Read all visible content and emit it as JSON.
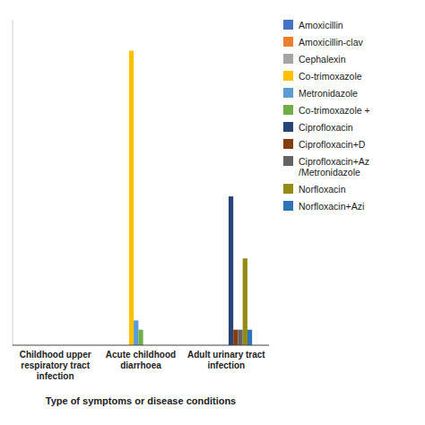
{
  "chart_data": {
    "type": "bar",
    "xlabel": "Type of symptoms or disease conditions",
    "categories": [
      "Childhood upper\nrespiratory tract\ninfection",
      "Acute childhood\ndiarrhoea",
      "Adult urinary tract\ninfection"
    ],
    "series": [
      {
        "name": "Amoxicillin",
        "color": "#4472C4",
        "values": [
          0,
          0,
          0
        ]
      },
      {
        "name": "Amoxicillin-clav",
        "color": "#ED7D31",
        "values": [
          0,
          0,
          0
        ]
      },
      {
        "name": "Cephalexin",
        "color": "#A5A5A5",
        "values": [
          0,
          0,
          0
        ]
      },
      {
        "name": "Co-trimoxazole",
        "color": "#FFC000",
        "values": [
          0,
          95,
          0
        ]
      },
      {
        "name": "Metronidazole",
        "color": "#5B9BD5",
        "values": [
          0,
          8,
          0
        ]
      },
      {
        "name": "Co-trimoxazole +",
        "color": "#70AD47",
        "values": [
          0,
          5,
          0
        ]
      },
      {
        "name": "Ciprofloxacin",
        "color": "#264478",
        "values": [
          0,
          0,
          48
        ]
      },
      {
        "name": "Ciprofloxacin+D",
        "color": "#843C0C",
        "values": [
          0,
          0,
          5
        ]
      },
      {
        "name": "Ciprofloxacin+Az\n/Metronidazole",
        "color": "#636363",
        "values": [
          0,
          0,
          5
        ]
      },
      {
        "name": "Norfloxacin",
        "color": "#948A16",
        "values": [
          0,
          0,
          28
        ]
      },
      {
        "name": "Norfloxacin+Azi",
        "color": "#2E75B6",
        "values": [
          0,
          0,
          5
        ]
      }
    ],
    "ylim": [
      0,
      105
    ],
    "tick_labels": "x",
    "grid": false,
    "legend": "right"
  }
}
